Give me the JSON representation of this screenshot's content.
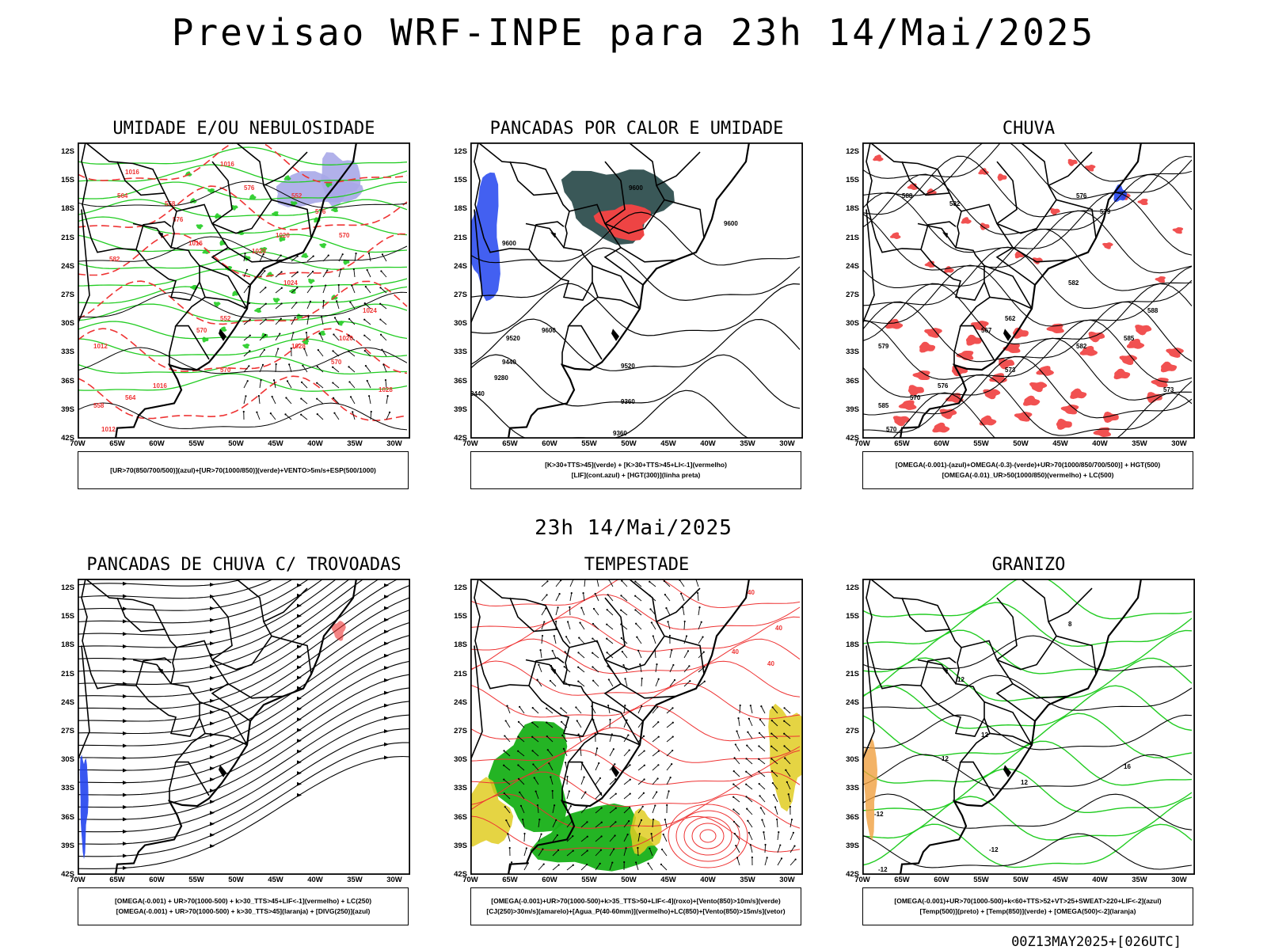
{
  "main_title": "Previsao WRF-INPE  para 23h 14/Mai/2025",
  "mid_title": "23h 14/Mai/2025",
  "footer_stamp": "00Z13MAY2025+[026UTC]",
  "colors": {
    "frame": "#000000",
    "border_line": "#000000",
    "green": "#22cc22",
    "red": "#ee3333",
    "blue": "#2244ee",
    "lavender": "#a8a8e8",
    "teal": "#2f4f4f",
    "yellow": "#e0cc22",
    "dark_green": "#18b018"
  },
  "axes": {
    "lat_ticks": [
      "12S",
      "15S",
      "18S",
      "21S",
      "24S",
      "27S",
      "30S",
      "33S",
      "36S",
      "39S",
      "42S"
    ],
    "lon_ticks": [
      "70W",
      "65W",
      "60W",
      "55W",
      "50W",
      "45W",
      "40W",
      "35W",
      "30W"
    ]
  },
  "panels": [
    {
      "id": "p1",
      "title": "UMIDADE E/OU NEBULOSIDADE",
      "legend": [
        "[UR>70(850/700/500)](azul)+[UR>70(1000/850)](verde)+VENTO>5m/s+ESP(500/1000)"
      ],
      "contour_labels": [
        "1016",
        "1016",
        "1020",
        "1016",
        "1020",
        "1024",
        "1024",
        "1020",
        "1028",
        "1012",
        "1016",
        "1028",
        "1012",
        "570",
        "564",
        "558",
        "552",
        "576",
        "570",
        "564",
        "558",
        "552",
        "570",
        "576",
        "582",
        "576",
        "570"
      ]
    },
    {
      "id": "p2",
      "title": "PANCADAS POR CALOR E UMIDADE",
      "legend": [
        "[K>30+TTS>45](verde) + [K>30+TTS>45+LI<-1](vermelho)",
        "[LIF](cont.azul) + [HGT(300)](linha preta)"
      ],
      "contour_labels": [
        "9600",
        "9600",
        "9600",
        "9520",
        "9600",
        "9520",
        "9440",
        "9360",
        "9280",
        "9440",
        "9360"
      ]
    },
    {
      "id": "p3",
      "title": "CHUVA",
      "legend": [
        "[OMEGA(-0.001)-(azul)+OMEGA(-0.3)-(verde)+UR>70(1000/850/700/500)] + HGT(500)",
        "[OMEGA(-0.01)_UR>50(1000/850)(vermelho) + LC(500)"
      ],
      "contour_labels": [
        "582",
        "588",
        "585",
        "582",
        "579",
        "576",
        "573",
        "570",
        "567",
        "588",
        "582",
        "576",
        "579",
        "573",
        "570",
        "585",
        "562"
      ]
    },
    {
      "id": "p4",
      "title": "PANCADAS DE CHUVA C/ TROVOADAS",
      "legend": [
        "[OMEGA(-0.001) + UR>70(1000-500) + k>30_TTS>45+LIF<-1](vermelho) + LC(250)",
        "[OMEGA(-0.001) + UR>70(1000-500) + k>30_TTS>45](laranja) + [DIVG(250)](azul)"
      ],
      "contour_labels": []
    },
    {
      "id": "p5",
      "title": "TEMPESTADE",
      "legend": [
        "[OMEGA(-0.001)+UR>70(1000-500)+k>35_TTS>50+LIF<-4](roxo)+[Vento(850)>10m/s](verde)",
        "[CJ(250)>30m/s](amarelo)+[Agua_P(40-60mm)](vermelho)+LC(850)+[Vento(850)>15m/s](vetor)"
      ],
      "contour_labels": [
        "40",
        "40",
        "40",
        "40"
      ]
    },
    {
      "id": "p6",
      "title": "GRANIZO",
      "legend": [
        "[OMEGA(-0.001)+UR>70(1000-500)+k<60+TTS>52+VT>25+SWEAT>220+LIF<-2](azul)",
        "[Temp(500)](preto) + [Temp(850)](verde) + [OMEGA(500)<-2](laranja)"
      ],
      "contour_labels": [
        "-12",
        "-12",
        "-12",
        "12",
        "12",
        "12",
        "12",
        "16",
        "8"
      ]
    }
  ]
}
